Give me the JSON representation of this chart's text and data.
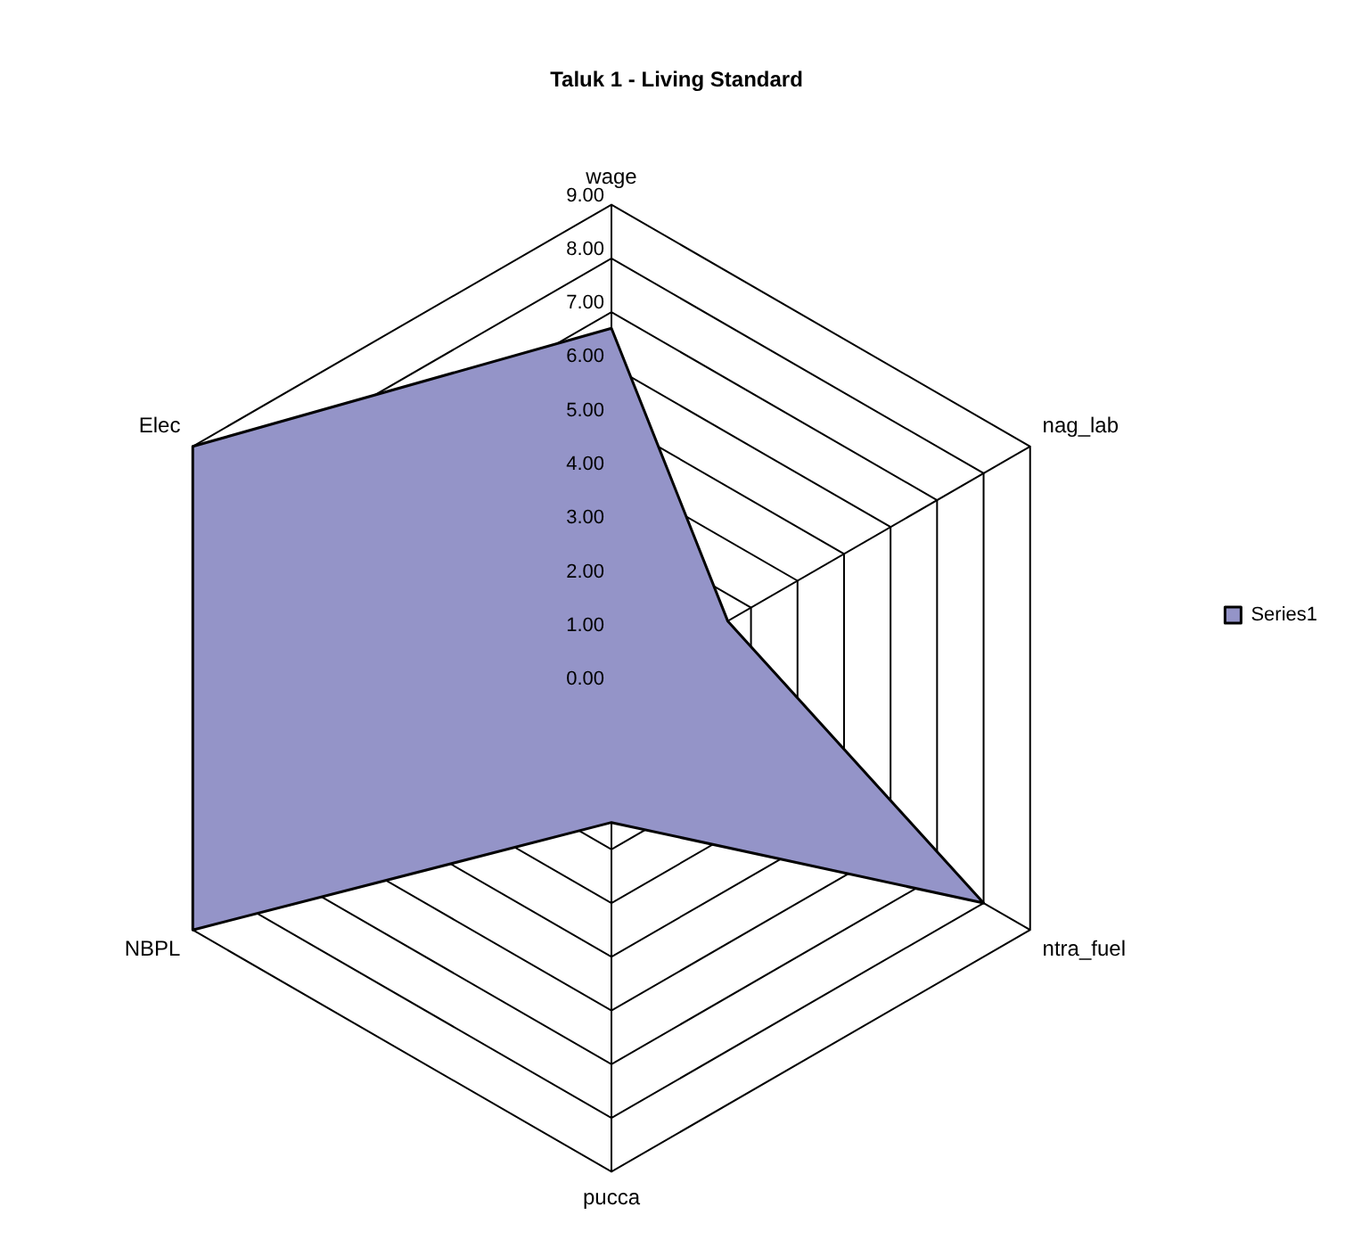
{
  "chart_data": {
    "type": "radar",
    "title": "Taluk 1 - Living Standard",
    "categories": [
      "wage",
      "nag_lab",
      "ntra_fuel",
      "pucca",
      "NBPL",
      "Elec"
    ],
    "series": [
      {
        "name": "Series1",
        "color": "#9494c8",
        "values": [
          6.7,
          2.5,
          8,
          2.5,
          9,
          9
        ]
      }
    ],
    "ylim": [
      0,
      9
    ],
    "yticks": [
      {
        "value": 0,
        "label": "0.00"
      },
      {
        "value": 1,
        "label": "1.00"
      },
      {
        "value": 2,
        "label": "2.00"
      },
      {
        "value": 3,
        "label": "3.00"
      },
      {
        "value": 4,
        "label": "4.00"
      },
      {
        "value": 5,
        "label": "5.00"
      },
      {
        "value": 6,
        "label": "6.00"
      },
      {
        "value": 7,
        "label": "7.00"
      },
      {
        "value": 8,
        "label": "8.00"
      },
      {
        "value": 9,
        "label": "9.00"
      }
    ],
    "grid": true,
    "legend": "right",
    "marker": "none"
  }
}
